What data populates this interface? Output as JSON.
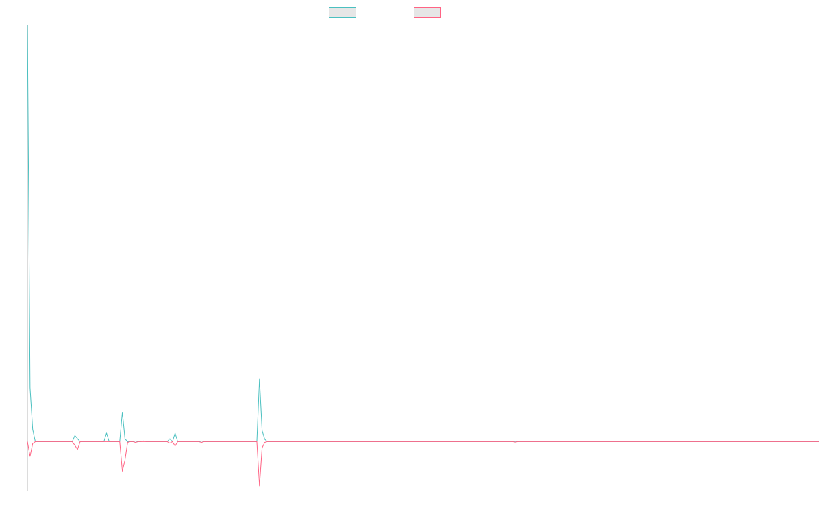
{
  "chart_data": {
    "type": "line",
    "title": "",
    "xlabel": "",
    "ylabel": "",
    "grid": false,
    "legend_position": "top-center",
    "x_range": [
      0,
      300
    ],
    "ylim": [
      -20,
      170
    ],
    "series": [
      {
        "color": "#4bc0c0",
        "points": [
          [
            0,
            170
          ],
          [
            1,
            22
          ],
          [
            2,
            5
          ],
          [
            3,
            0
          ],
          [
            17,
            0
          ],
          [
            18,
            2.5
          ],
          [
            20,
            0
          ],
          [
            29,
            0
          ],
          [
            30,
            3.5
          ],
          [
            31,
            0
          ],
          [
            35,
            0
          ],
          [
            36,
            12
          ],
          [
            37,
            1.2
          ],
          [
            38,
            0
          ],
          [
            40,
            0
          ],
          [
            41,
            0.3
          ],
          [
            42,
            0
          ],
          [
            43,
            0
          ],
          [
            44,
            0.3
          ],
          [
            45,
            0
          ],
          [
            53,
            0
          ],
          [
            54,
            1.2
          ],
          [
            55,
            0
          ],
          [
            56,
            3.5
          ],
          [
            57,
            0
          ],
          [
            65,
            0
          ],
          [
            66,
            0.3
          ],
          [
            67,
            0
          ],
          [
            87,
            0
          ],
          [
            88,
            25.5
          ],
          [
            89,
            4.5
          ],
          [
            90,
            1
          ],
          [
            91,
            0
          ],
          [
            184,
            0
          ],
          [
            185,
            0.2
          ],
          [
            186,
            0
          ],
          [
            300,
            0
          ]
        ]
      },
      {
        "color": "#ff6384",
        "points": [
          [
            0,
            0
          ],
          [
            1,
            -6
          ],
          [
            2,
            -0.8
          ],
          [
            3,
            0
          ],
          [
            17,
            0
          ],
          [
            18,
            -1.5
          ],
          [
            19,
            -3.2
          ],
          [
            20,
            0
          ],
          [
            35,
            0
          ],
          [
            36,
            -12
          ],
          [
            37,
            -7.5
          ],
          [
            38,
            -0.3
          ],
          [
            39,
            0
          ],
          [
            40,
            0
          ],
          [
            41,
            -0.3
          ],
          [
            42,
            0
          ],
          [
            53,
            0
          ],
          [
            54,
            -0.6
          ],
          [
            55,
            0
          ],
          [
            56,
            -1.8
          ],
          [
            57,
            0
          ],
          [
            65,
            0
          ],
          [
            66,
            -0.3
          ],
          [
            67,
            0
          ],
          [
            87,
            0
          ],
          [
            88,
            -18
          ],
          [
            89,
            -2.5
          ],
          [
            90,
            -0.3
          ],
          [
            91,
            0
          ],
          [
            184,
            0
          ],
          [
            185,
            -0.2
          ],
          [
            186,
            0
          ],
          [
            300,
            0
          ]
        ]
      }
    ]
  },
  "legend": [
    {
      "label": "",
      "color": "#4bc0c0"
    },
    {
      "label": "",
      "color": "#ff6384"
    }
  ]
}
